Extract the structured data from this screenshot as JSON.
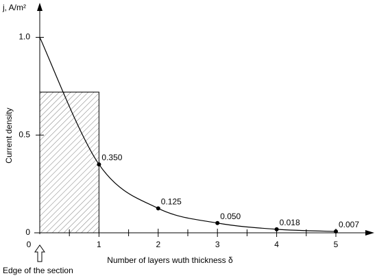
{
  "chart_data": {
    "type": "line",
    "y_axis_label": "j, A/m²",
    "y_title": "Current density",
    "x_title": "Number of layers wuth thickness δ",
    "annotation": "Edge of the section",
    "x": [
      0,
      1,
      2,
      3,
      4,
      5
    ],
    "series": [
      {
        "color": "#000000",
        "values": [
          1.0,
          0.35,
          0.125,
          0.05,
          0.018,
          0.007
        ],
        "value_labels": [
          null,
          "0.350",
          "0.125",
          "0.050",
          "0.018",
          "0.007"
        ]
      }
    ],
    "hatched_area": {
      "x": [
        0,
        1
      ],
      "value": 0.72
    },
    "xlim": [
      0,
      5.6
    ],
    "ylim": [
      0,
      1.15
    ],
    "xticks": [
      0,
      1,
      2,
      3,
      4,
      5
    ],
    "xminor_ticks": [
      0.5,
      1.5,
      2.5,
      3.5,
      4.5
    ],
    "yticks": [
      0,
      0.5,
      {
        "value": 1,
        "label": "1.0"
      }
    ]
  }
}
